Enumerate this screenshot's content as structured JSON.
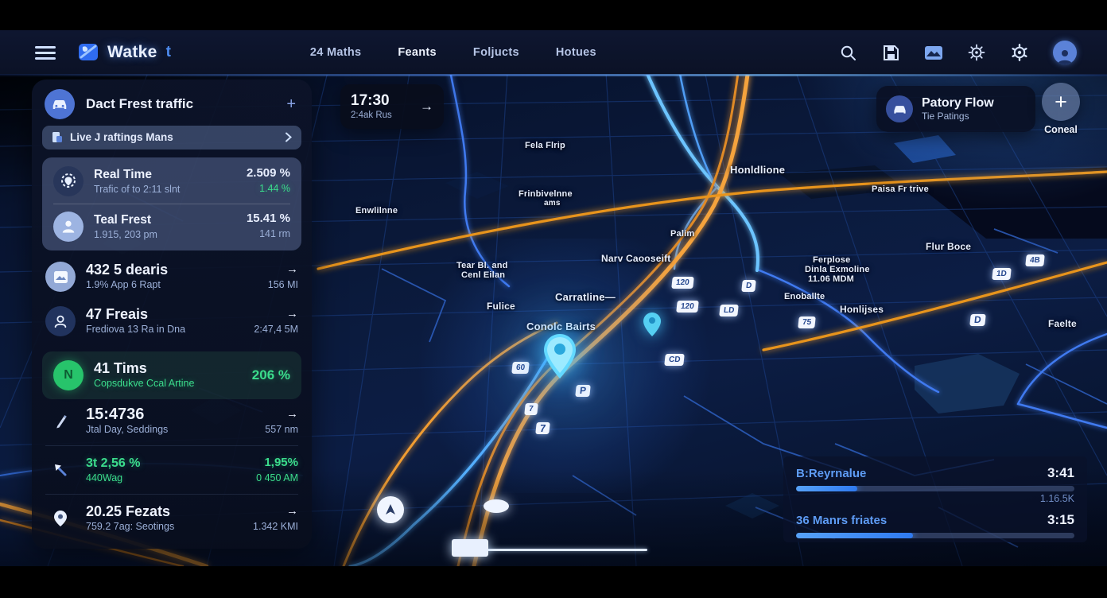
{
  "nav": {
    "logo_text": "Watke",
    "logo_accent": "t",
    "items": [
      {
        "label": "24 Maths"
      },
      {
        "label": "Feants"
      },
      {
        "label": "Foljucts"
      },
      {
        "label": "Hotues"
      }
    ]
  },
  "sidebar": {
    "header_title": "Dact Frest traffic",
    "header_action": "+",
    "subheader_label": "Live J raftings Mans",
    "subheader_chevron": "›",
    "items": [
      {
        "title": "Real Time",
        "subtitle": "Trafic of to 2:11 slnt",
        "value": "2.509 %",
        "value2": "1.44 %"
      },
      {
        "title": "Teal Frest",
        "subtitle": "1.915, 203 pm",
        "value": "15.41 %",
        "value2": "141 rm"
      },
      {
        "title": "432 5 dearis",
        "subtitle": "1.9% App 6 Rapt",
        "value": "→",
        "value2": "156 MI"
      },
      {
        "title": "47 Freais",
        "subtitle": "Frediova 13 Ra in Dna",
        "value": "→",
        "value2": "2:47,4 5M"
      },
      {
        "title": "41 Tims",
        "subtitle": "Copsdukve Ccal Artine",
        "value": "",
        "value2": "206 %",
        "icon_letter": "N"
      },
      {
        "title": "15:4736",
        "subtitle": "Jtal Day, Seddings",
        "value": "→",
        "value2": "557 nm"
      },
      {
        "title": "3t 2,56 %",
        "subtitle": "440Wag",
        "value": "1,95%",
        "value2": "0 450 AM"
      },
      {
        "title": "20.25 Fezats",
        "subtitle": "759.2 7ag: Seotings",
        "value": "→",
        "value2": "1.342 KMI"
      }
    ]
  },
  "time_card": {
    "time": "17:30",
    "subtitle": "2:4ak Rus",
    "arrow": "→"
  },
  "flow_card": {
    "title": "Patory Flow",
    "subtitle": "Tie Patings",
    "plus": "+",
    "button_label": "Coneal"
  },
  "bottom_panel": {
    "rows": [
      {
        "label": "B:Reyrnalue",
        "time": "3:41",
        "sub": "1.16.5K",
        "progress": 22
      },
      {
        "label": "36 Manrs friates",
        "time": "3:15",
        "sub": "",
        "progress": 42
      }
    ]
  },
  "map": {
    "labels": [
      {
        "text": "Fela Flrip"
      },
      {
        "text": "Honldlione"
      },
      {
        "text": "Paisa Fr trive"
      },
      {
        "text": "Frinbivelnne"
      },
      {
        "text": "ams"
      },
      {
        "text": "Enwlilnne"
      },
      {
        "text": "Palim"
      },
      {
        "text": "Flur Boce"
      },
      {
        "text": "Narv Caooseift"
      },
      {
        "text": "Tear Bl. and"
      },
      {
        "text": "Cenl Eilan"
      },
      {
        "text": "Ferplose"
      },
      {
        "text": "Dinla Exmoline"
      },
      {
        "text": "11.06 MDM"
      },
      {
        "text": "Carratline—"
      },
      {
        "text": "Fulice"
      },
      {
        "text": "Enoballte"
      },
      {
        "text": "Honlijses"
      },
      {
        "text": "Conolc Bairts"
      },
      {
        "text": "Faelte"
      }
    ],
    "markers": [
      {
        "glyph": "120"
      },
      {
        "glyph": "D"
      },
      {
        "glyph": "120"
      },
      {
        "glyph": "LD"
      },
      {
        "glyph": "4B"
      },
      {
        "glyph": "1D"
      },
      {
        "glyph": "D"
      },
      {
        "glyph": "75"
      },
      {
        "glyph": "60"
      },
      {
        "glyph": "CD"
      },
      {
        "glyph": "P"
      },
      {
        "glyph": "7"
      },
      {
        "glyph": "7"
      }
    ]
  },
  "colors": {
    "accent_blue": "#3b82f6",
    "bright_cyan": "#5fd8ff",
    "highway_orange": "#f5a33c",
    "positive_green": "#3bdc8c",
    "panel_navy": "#0b1226"
  }
}
